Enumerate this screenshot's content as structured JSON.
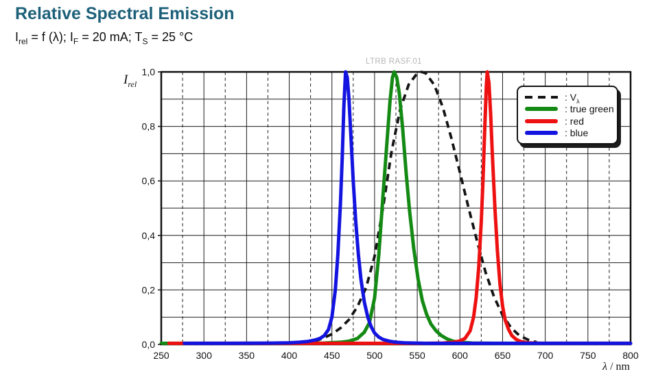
{
  "header": {
    "title": "Relative Spectral Emission",
    "formula": [
      "I",
      "rel",
      " = f (λ); I",
      "F",
      " = 20 mA; T",
      "S",
      " = 25 °C"
    ]
  },
  "watermark": "LTRB RASF.01",
  "axes": {
    "y_title": {
      "sym": "I",
      "sub": "rel"
    },
    "x_title": {
      "sym": "λ",
      "sep": " / ",
      "unit": "nm"
    }
  },
  "chart_data": {
    "type": "line",
    "title": "Relative Spectral Emission",
    "xlabel": "λ / nm",
    "ylabel": "I rel",
    "grid": {
      "horizontal": "solid",
      "major_vertical": "solid",
      "minor_vertical": "dashed"
    },
    "legend_position": "top-right",
    "x_axis": {
      "min": 250,
      "max": 800,
      "major_tick_step": 50,
      "minor_tick_step": 25,
      "tick_labels": [
        "250",
        "300",
        "350",
        "400",
        "450",
        "500",
        "550",
        "600",
        "650",
        "700",
        "750",
        "800"
      ]
    },
    "y_axis": {
      "min": 0.0,
      "max": 1.0,
      "grid_step": 0.1,
      "ticks": [
        {
          "value": 0.0,
          "label": "0,0"
        },
        {
          "value": 0.2,
          "label": "0,2"
        },
        {
          "value": 0.4,
          "label": "0,4"
        },
        {
          "value": 0.6,
          "label": "0,6"
        },
        {
          "value": 0.8,
          "label": "0,8"
        },
        {
          "value": 1.0,
          "label": "1,0"
        }
      ]
    },
    "series": [
      {
        "name": "v-lambda",
        "legend_label": ": V",
        "legend_sub": "λ",
        "color": "#141414",
        "style": "dashed",
        "points": [
          [
            430,
            0.012
          ],
          [
            440,
            0.023
          ],
          [
            450,
            0.038
          ],
          [
            460,
            0.06
          ],
          [
            470,
            0.091
          ],
          [
            480,
            0.139
          ],
          [
            490,
            0.208
          ],
          [
            500,
            0.323
          ],
          [
            510,
            0.503
          ],
          [
            520,
            0.71
          ],
          [
            530,
            0.862
          ],
          [
            540,
            0.954
          ],
          [
            550,
            0.995
          ],
          [
            555,
            1.0
          ],
          [
            560,
            0.995
          ],
          [
            570,
            0.952
          ],
          [
            580,
            0.87
          ],
          [
            590,
            0.757
          ],
          [
            600,
            0.631
          ],
          [
            610,
            0.503
          ],
          [
            620,
            0.381
          ],
          [
            630,
            0.265
          ],
          [
            640,
            0.175
          ],
          [
            650,
            0.107
          ],
          [
            660,
            0.061
          ],
          [
            670,
            0.032
          ],
          [
            680,
            0.017
          ],
          [
            690,
            0.008
          ]
        ]
      },
      {
        "name": "true-green",
        "legend_label": ": true green",
        "legend_sub": "",
        "color": "#148a14",
        "style": "solid",
        "points": [
          [
            250,
            0.004
          ],
          [
            300,
            0.004
          ],
          [
            350,
            0.004
          ],
          [
            400,
            0.004
          ],
          [
            440,
            0.005
          ],
          [
            460,
            0.008
          ],
          [
            470,
            0.012
          ],
          [
            480,
            0.022
          ],
          [
            488,
            0.045
          ],
          [
            494,
            0.08
          ],
          [
            500,
            0.17
          ],
          [
            505,
            0.33
          ],
          [
            510,
            0.55
          ],
          [
            514,
            0.72
          ],
          [
            518,
            0.89
          ],
          [
            521,
            0.98
          ],
          [
            523,
            1.0
          ],
          [
            526,
            0.98
          ],
          [
            529,
            0.92
          ],
          [
            533,
            0.79
          ],
          [
            537,
            0.63
          ],
          [
            541,
            0.49
          ],
          [
            546,
            0.35
          ],
          [
            551,
            0.24
          ],
          [
            556,
            0.16
          ],
          [
            561,
            0.11
          ],
          [
            566,
            0.075
          ],
          [
            572,
            0.05
          ],
          [
            578,
            0.033
          ],
          [
            585,
            0.02
          ],
          [
            592,
            0.012
          ],
          [
            600,
            0.008
          ],
          [
            615,
            0.005
          ],
          [
            640,
            0.004
          ],
          [
            700,
            0.004
          ],
          [
            800,
            0.004
          ]
        ]
      },
      {
        "name": "red",
        "legend_label": ": red",
        "legend_sub": "",
        "color": "#ee1111",
        "style": "solid",
        "points": [
          [
            259,
            0.004
          ],
          [
            300,
            0.004
          ],
          [
            400,
            0.004
          ],
          [
            500,
            0.004
          ],
          [
            560,
            0.004
          ],
          [
            580,
            0.005
          ],
          [
            592,
            0.008
          ],
          [
            600,
            0.013
          ],
          [
            606,
            0.022
          ],
          [
            612,
            0.05
          ],
          [
            616,
            0.1
          ],
          [
            619,
            0.17
          ],
          [
            622,
            0.28
          ],
          [
            625,
            0.45
          ],
          [
            627,
            0.6
          ],
          [
            629,
            0.78
          ],
          [
            631,
            0.95
          ],
          [
            632,
            1.0
          ],
          [
            634,
            0.96
          ],
          [
            636,
            0.85
          ],
          [
            638,
            0.7
          ],
          [
            641,
            0.5
          ],
          [
            644,
            0.34
          ],
          [
            647,
            0.22
          ],
          [
            650,
            0.14
          ],
          [
            653,
            0.09
          ],
          [
            657,
            0.055
          ],
          [
            661,
            0.032
          ],
          [
            666,
            0.018
          ],
          [
            672,
            0.01
          ],
          [
            680,
            0.006
          ],
          [
            695,
            0.004
          ],
          [
            800,
            0.004
          ]
        ]
      },
      {
        "name": "blue",
        "legend_label": ": blue",
        "legend_sub": "",
        "color": "#1414e0",
        "style": "solid",
        "points": [
          [
            277,
            0.004
          ],
          [
            330,
            0.004
          ],
          [
            380,
            0.005
          ],
          [
            400,
            0.006
          ],
          [
            412,
            0.008
          ],
          [
            422,
            0.011
          ],
          [
            430,
            0.016
          ],
          [
            436,
            0.022
          ],
          [
            441,
            0.032
          ],
          [
            446,
            0.055
          ],
          [
            450,
            0.1
          ],
          [
            454,
            0.2
          ],
          [
            457,
            0.33
          ],
          [
            460,
            0.52
          ],
          [
            462,
            0.68
          ],
          [
            464,
            0.87
          ],
          [
            466,
            1.0
          ],
          [
            468,
            0.98
          ],
          [
            470,
            0.9
          ],
          [
            472,
            0.78
          ],
          [
            475,
            0.6
          ],
          [
            478,
            0.45
          ],
          [
            481,
            0.33
          ],
          [
            484,
            0.24
          ],
          [
            488,
            0.155
          ],
          [
            492,
            0.1
          ],
          [
            496,
            0.065
          ],
          [
            500,
            0.042
          ],
          [
            505,
            0.027
          ],
          [
            510,
            0.018
          ],
          [
            517,
            0.012
          ],
          [
            525,
            0.008
          ],
          [
            535,
            0.006
          ],
          [
            548,
            0.005
          ],
          [
            560,
            0.004
          ],
          [
            600,
            0.004
          ],
          [
            700,
            0.004
          ],
          [
            800,
            0.004
          ]
        ]
      }
    ]
  }
}
